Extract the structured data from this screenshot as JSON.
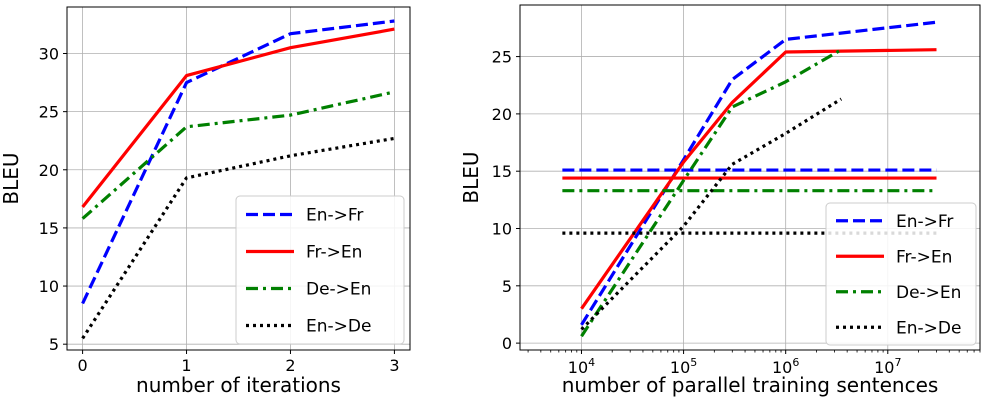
{
  "chart_data": [
    {
      "type": "line",
      "xlabel": "number of iterations",
      "ylabel": "BLEU",
      "xscale": "linear",
      "xlim": [
        -0.15,
        3.15
      ],
      "ylim": [
        4.5,
        34
      ],
      "xticks": [
        0,
        1,
        2,
        3
      ],
      "xtick_labels": [
        "0",
        "1",
        "2",
        "3"
      ],
      "yticks": [
        5,
        10,
        15,
        20,
        25,
        30
      ],
      "ytick_labels": [
        "5",
        "10",
        "15",
        "20",
        "25",
        "30"
      ],
      "grid": true,
      "legend_position": "lower-right",
      "series": [
        {
          "name": "En->Fr",
          "color": "#0000ff",
          "style": "dashed",
          "points": [
            [
              0,
              8.5
            ],
            [
              1,
              27.5
            ],
            [
              2,
              31.7
            ],
            [
              3,
              32.8
            ]
          ]
        },
        {
          "name": "Fr->En",
          "color": "#ff0000",
          "style": "solid",
          "points": [
            [
              0,
              16.8
            ],
            [
              1,
              28.1
            ],
            [
              2,
              30.5
            ],
            [
              3,
              32.1
            ]
          ]
        },
        {
          "name": "De->En",
          "color": "#008000",
          "style": "dashdot",
          "points": [
            [
              0,
              15.8
            ],
            [
              1,
              23.7
            ],
            [
              2,
              24.7
            ],
            [
              3,
              26.7
            ]
          ]
        },
        {
          "name": "En->De",
          "color": "#000000",
          "style": "dotted",
          "points": [
            [
              0,
              5.5
            ],
            [
              1,
              19.3
            ],
            [
              2,
              21.2
            ],
            [
              3,
              22.7
            ]
          ]
        }
      ]
    },
    {
      "type": "line",
      "xlabel": "number of parallel training sentences",
      "ylabel": "BLEU",
      "xscale": "log",
      "xlim": [
        2500,
        80000000
      ],
      "ylim": [
        -0.6,
        29.5
      ],
      "xticks": [
        10000,
        100000,
        1000000,
        10000000
      ],
      "xtick_labels": [
        {
          "base": "10",
          "exp": "4"
        },
        {
          "base": "10",
          "exp": "5"
        },
        {
          "base": "10",
          "exp": "6"
        },
        {
          "base": "10",
          "exp": "7"
        }
      ],
      "yticks": [
        0,
        5,
        10,
        15,
        20,
        25
      ],
      "ytick_labels": [
        "0",
        "5",
        "10",
        "15",
        "20",
        "25"
      ],
      "grid": true,
      "legend_position": "lower-right",
      "series": [
        {
          "name": "En->Fr",
          "color": "#0000ff",
          "style": "dashed",
          "points": [
            [
              10000,
              1.6
            ],
            [
              100000,
              16.0
            ],
            [
              300000,
              23.0
            ],
            [
              1000000,
              26.5
            ],
            [
              30000000,
              28.0
            ]
          ],
          "baseline": {
            "value": 15.1,
            "x_range": [
              6500,
              30000000
            ]
          }
        },
        {
          "name": "Fr->En",
          "color": "#ff0000",
          "style": "solid",
          "points": [
            [
              10000,
              3.0
            ],
            [
              100000,
              15.8
            ],
            [
              300000,
              21.0
            ],
            [
              1000000,
              25.4
            ],
            [
              30000000,
              25.6
            ]
          ],
          "baseline": {
            "value": 14.4,
            "x_range": [
              6500,
              30000000
            ]
          }
        },
        {
          "name": "De->En",
          "color": "#008000",
          "style": "dashdot",
          "points": [
            [
              10000,
              0.6
            ],
            [
              100000,
              14.2
            ],
            [
              300000,
              20.6
            ],
            [
              1000000,
              22.8
            ],
            [
              3500000,
              25.6
            ]
          ],
          "baseline": {
            "value": 13.3,
            "x_range": [
              6500,
              30000000
            ]
          }
        },
        {
          "name": "En->De",
          "color": "#000000",
          "style": "dotted",
          "points": [
            [
              10000,
              1.2
            ],
            [
              100000,
              10.2
            ],
            [
              300000,
              15.6
            ],
            [
              1000000,
              18.3
            ],
            [
              3500000,
              21.3
            ]
          ],
          "baseline": {
            "value": 9.6,
            "x_range": [
              6500,
              30000000
            ]
          }
        }
      ]
    }
  ]
}
